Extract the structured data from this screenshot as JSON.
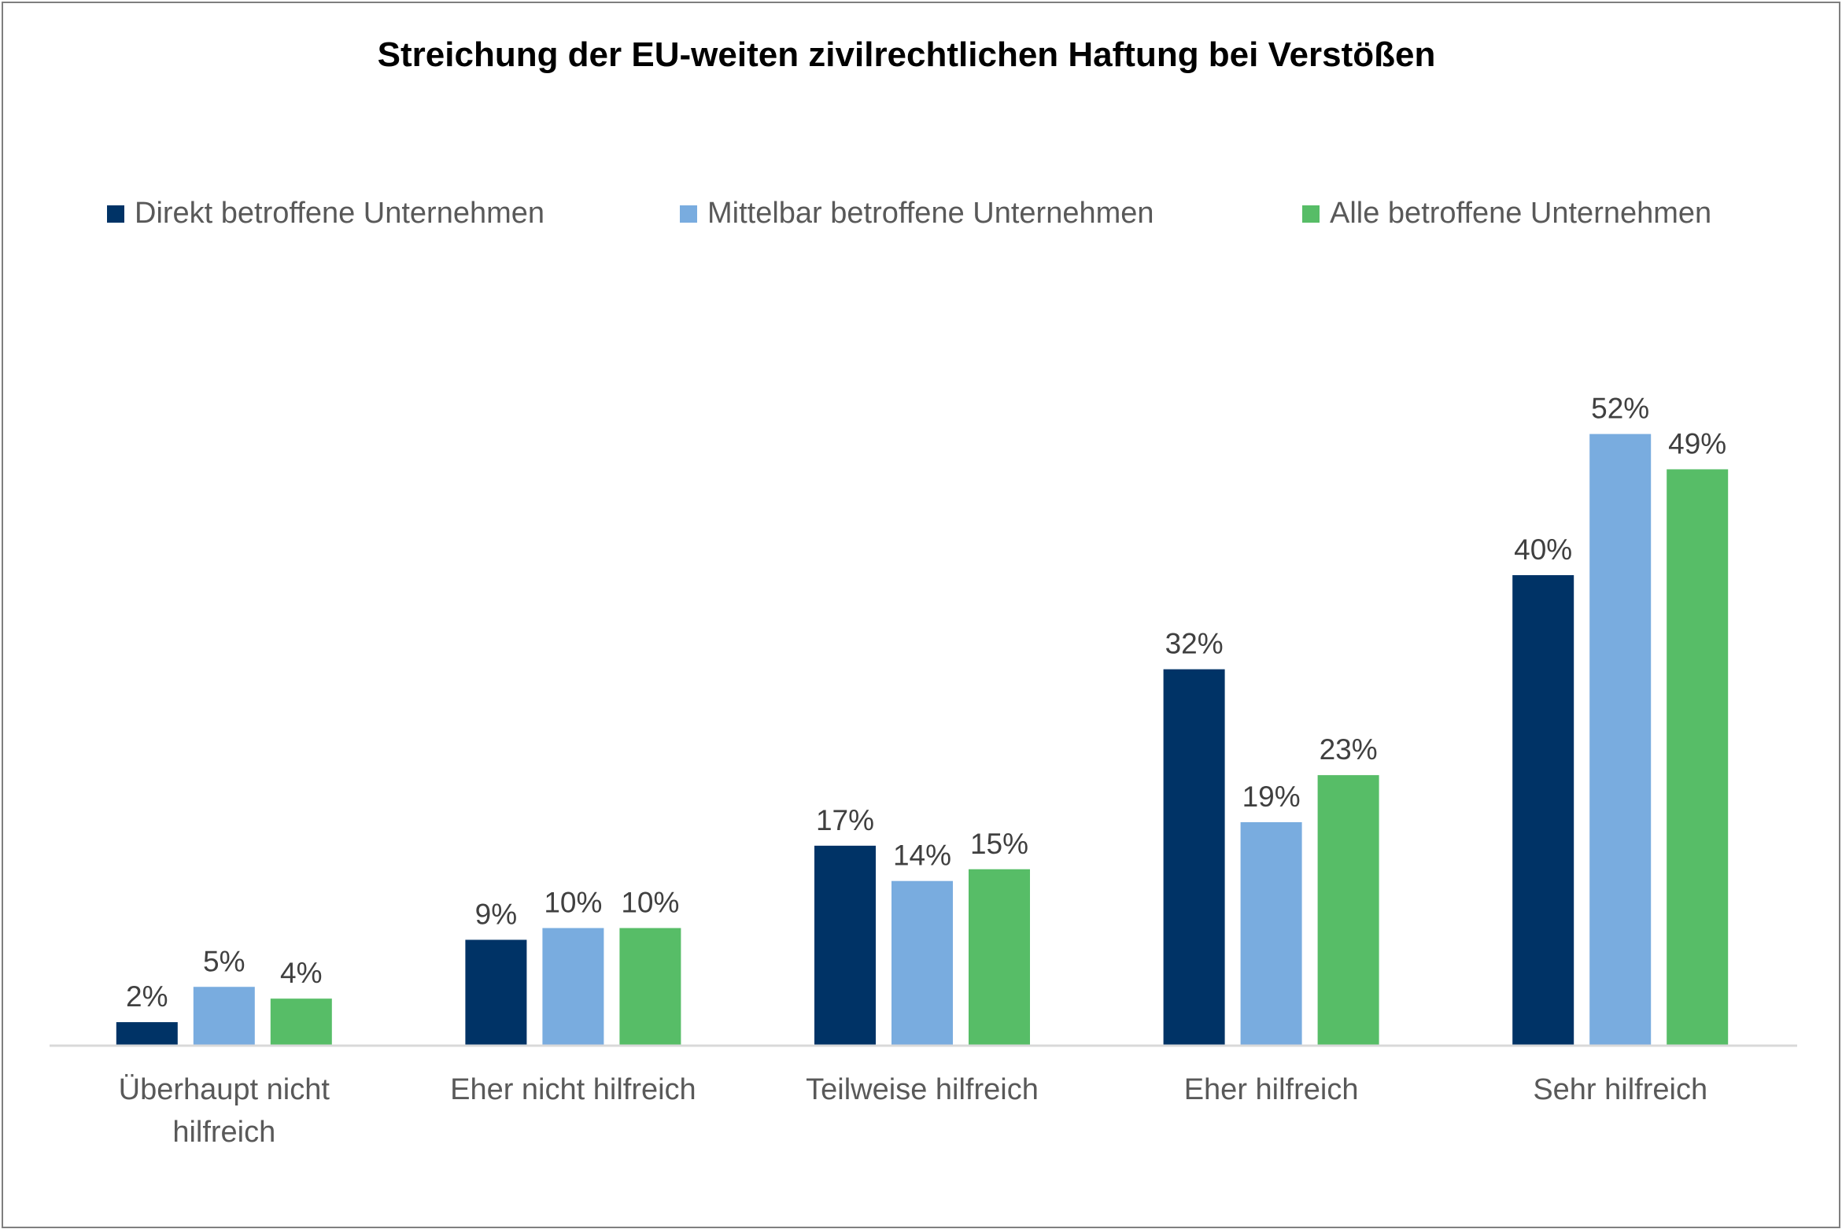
{
  "chart_data": {
    "type": "bar",
    "title": "Streichung der EU-weiten zivilrechtlichen Haftung bei Verstößen",
    "categories": [
      [
        "Überhaupt nicht",
        "hilfreich"
      ],
      [
        "Eher nicht hilfreich"
      ],
      [
        "Teilweise hilfreich"
      ],
      [
        "Eher hilfreich"
      ],
      [
        "Sehr hilfreich"
      ]
    ],
    "series": [
      {
        "name": "Direkt betroffene Unternehmen",
        "color": "#003366",
        "values": [
          2,
          9,
          17,
          32,
          40
        ],
        "labels": [
          "2%",
          "9%",
          "17%",
          "32%",
          "40%"
        ]
      },
      {
        "name": "Mittelbar betroffene Unternehmen",
        "color": "#79acdf",
        "values": [
          5,
          10,
          14,
          19,
          52
        ],
        "labels": [
          "5%",
          "10%",
          "14%",
          "19%",
          "52%"
        ]
      },
      {
        "name": "Alle betroffene Unternehmen",
        "color": "#57bd67",
        "values": [
          4,
          10,
          15,
          23,
          49
        ],
        "labels": [
          "4%",
          "10%",
          "15%",
          "23%",
          "49%"
        ]
      }
    ],
    "ylim": [
      0,
      60
    ],
    "xlabel": "",
    "ylabel": "",
    "grid": false,
    "legend_position": "top"
  }
}
